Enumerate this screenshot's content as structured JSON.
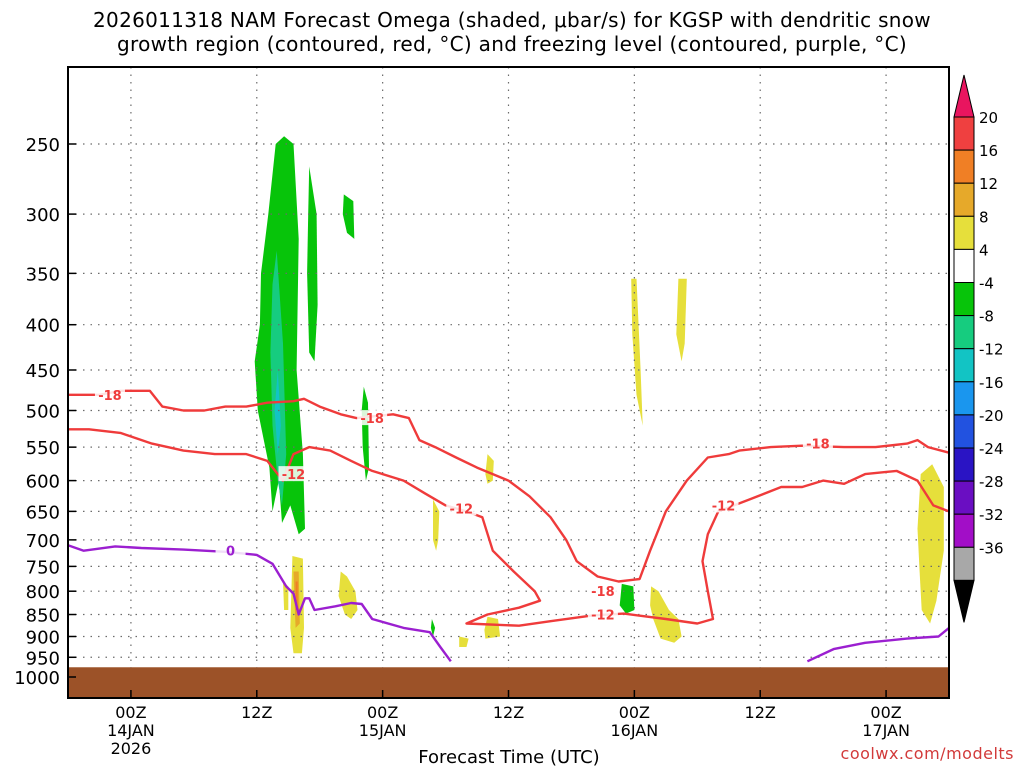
{
  "title_lines": [
    "2026011318 NAM Forecast Omega (shaded, μbar/s) for KGSP with dendritic snow",
    "growth region (contoured, red, °C) and freezing level (contoured, purple, °C)"
  ],
  "credit": "coolwx.com/modelts",
  "colors": {
    "freezing": "#9b1fd0",
    "dendritic": "#ef3b3b",
    "ground": "#9c5228",
    "grid": "#6b6b6b"
  },
  "chart_data": {
    "type": "heatmap",
    "xlabel": "Forecast Time (UTC)",
    "ylabel": "",
    "x_unit": "hours since 2026-01-13 18Z",
    "xlim": [
      0,
      84
    ],
    "y_unit": "hPa",
    "ylim": [
      1000,
      200
    ],
    "y_scale": "log",
    "grid": true,
    "ground_top_hpa": 975,
    "y_ticks": [
      250,
      300,
      350,
      400,
      450,
      500,
      550,
      600,
      650,
      700,
      750,
      800,
      850,
      900,
      950,
      1000
    ],
    "x_ticks": [
      {
        "x": 6,
        "lines": [
          "00Z",
          "14JAN",
          "2026"
        ]
      },
      {
        "x": 18,
        "lines": [
          "12Z"
        ]
      },
      {
        "x": 30,
        "lines": [
          "00Z",
          "15JAN"
        ]
      },
      {
        "x": 42,
        "lines": [
          "12Z"
        ]
      },
      {
        "x": 54,
        "lines": [
          "00Z",
          "16JAN"
        ]
      },
      {
        "x": 66,
        "lines": [
          "12Z"
        ]
      },
      {
        "x": 78,
        "lines": [
          "00Z",
          "17JAN"
        ]
      }
    ],
    "colorbar": {
      "labels": [
        "20",
        "16",
        "12",
        "8",
        "4",
        "-4",
        "-8",
        "-12",
        "-16",
        "-20",
        "-24",
        "-28",
        "-32",
        "-36"
      ],
      "colors": [
        "#e9155f",
        "#ef4040",
        "#f07f25",
        "#e6a92a",
        "#e6df3b",
        "#ffffff",
        "#07c40a",
        "#16cc7f",
        "#12c4c4",
        "#1a96ee",
        "#2252e0",
        "#2a14c4",
        "#6a0ec2",
        "#a20ec7",
        "#a8a8a8",
        "#000000"
      ]
    },
    "omega_areas": [
      {
        "level": "-4",
        "points": [
          [
            20.6,
            245
          ],
          [
            21.5,
            250
          ],
          [
            22.0,
            320
          ],
          [
            21.8,
            450
          ],
          [
            22.4,
            560
          ],
          [
            22.6,
            680
          ],
          [
            22.0,
            690
          ],
          [
            21.2,
            640
          ],
          [
            20.4,
            670
          ],
          [
            20.1,
            600
          ],
          [
            19.5,
            650
          ],
          [
            19.2,
            580
          ],
          [
            18.1,
            500
          ],
          [
            17.8,
            440
          ],
          [
            18.3,
            400
          ],
          [
            18.4,
            350
          ],
          [
            19.1,
            300
          ],
          [
            19.8,
            250
          ]
        ]
      },
      {
        "level": "-8",
        "points": [
          [
            19.9,
            330
          ],
          [
            20.5,
            420
          ],
          [
            20.8,
            560
          ],
          [
            20.4,
            640
          ],
          [
            20.0,
            600
          ],
          [
            19.5,
            520
          ],
          [
            19.3,
            430
          ],
          [
            19.5,
            360
          ]
        ]
      },
      {
        "level": "-12",
        "points": [
          [
            20.0,
            450
          ],
          [
            20.3,
            520
          ],
          [
            20.0,
            560
          ],
          [
            19.7,
            500
          ]
        ]
      },
      {
        "level": "-4",
        "points": [
          [
            23.0,
            265
          ],
          [
            23.7,
            300
          ],
          [
            23.8,
            380
          ],
          [
            23.5,
            440
          ],
          [
            23.0,
            430
          ],
          [
            22.8,
            350
          ],
          [
            22.9,
            300
          ]
        ]
      },
      {
        "level": "-4",
        "points": [
          [
            26.3,
            285
          ],
          [
            27.2,
            290
          ],
          [
            27.3,
            320
          ],
          [
            26.6,
            315
          ],
          [
            26.2,
            300
          ]
        ]
      },
      {
        "level": "-4",
        "points": [
          [
            28.2,
            470
          ],
          [
            28.6,
            490
          ],
          [
            28.7,
            580
          ],
          [
            28.4,
            600
          ],
          [
            28.1,
            550
          ],
          [
            28.0,
            500
          ]
        ]
      },
      {
        "level": "-4",
        "points": [
          [
            52.8,
            785
          ],
          [
            53.9,
            790
          ],
          [
            54.0,
            840
          ],
          [
            53.2,
            848
          ],
          [
            52.6,
            830
          ]
        ]
      },
      {
        "level": "-4",
        "points": [
          [
            34.7,
            860
          ],
          [
            35.0,
            880
          ],
          [
            34.8,
            900
          ],
          [
            34.6,
            880
          ]
        ]
      },
      {
        "level": "4",
        "points": [
          [
            21.4,
            730
          ],
          [
            22.4,
            735
          ],
          [
            22.5,
            880
          ],
          [
            22.3,
            940
          ],
          [
            21.5,
            940
          ],
          [
            21.2,
            880
          ],
          [
            21.3,
            800
          ]
        ]
      },
      {
        "level": "8",
        "points": [
          [
            21.5,
            760
          ],
          [
            22.0,
            760
          ],
          [
            22.1,
            870
          ],
          [
            21.7,
            880
          ],
          [
            21.6,
            820
          ]
        ]
      },
      {
        "level": "12",
        "points": [
          [
            21.7,
            780
          ],
          [
            21.9,
            780
          ],
          [
            21.9,
            840
          ],
          [
            21.7,
            840
          ]
        ]
      },
      {
        "level": "4",
        "points": [
          [
            20.5,
            780
          ],
          [
            21.0,
            790
          ],
          [
            21.0,
            840
          ],
          [
            20.6,
            840
          ]
        ]
      },
      {
        "level": "4",
        "points": [
          [
            26.0,
            760
          ],
          [
            26.6,
            770
          ],
          [
            27.4,
            800
          ],
          [
            27.6,
            840
          ],
          [
            27.0,
            860
          ],
          [
            26.4,
            850
          ],
          [
            25.8,
            810
          ]
        ]
      },
      {
        "level": "4",
        "points": [
          [
            34.8,
            630
          ],
          [
            35.4,
            650
          ],
          [
            35.3,
            700
          ],
          [
            35.1,
            720
          ],
          [
            34.8,
            700
          ]
        ]
      },
      {
        "level": "4",
        "points": [
          [
            40.0,
            560
          ],
          [
            40.6,
            570
          ],
          [
            40.5,
            600
          ],
          [
            40.0,
            605
          ],
          [
            39.8,
            590
          ]
        ]
      },
      {
        "level": "4",
        "points": [
          [
            40.0,
            855
          ],
          [
            41.0,
            860
          ],
          [
            41.2,
            900
          ],
          [
            39.8,
            905
          ],
          [
            39.7,
            885
          ]
        ]
      },
      {
        "level": "4",
        "points": [
          [
            37.3,
            900
          ],
          [
            38.2,
            905
          ],
          [
            38.0,
            925
          ],
          [
            37.3,
            925
          ]
        ]
      },
      {
        "level": "4",
        "points": [
          [
            53.7,
            355
          ],
          [
            54.2,
            355
          ],
          [
            54.6,
            450
          ],
          [
            54.8,
            520
          ],
          [
            54.2,
            480
          ],
          [
            53.8,
            410
          ]
        ]
      },
      {
        "level": "4",
        "points": [
          [
            58.2,
            355
          ],
          [
            59.0,
            355
          ],
          [
            58.8,
            420
          ],
          [
            58.5,
            440
          ],
          [
            58.0,
            410
          ]
        ]
      },
      {
        "level": "4",
        "points": [
          [
            55.6,
            790
          ],
          [
            56.3,
            800
          ],
          [
            57.3,
            840
          ],
          [
            58.2,
            860
          ],
          [
            58.5,
            900
          ],
          [
            57.8,
            915
          ],
          [
            56.5,
            905
          ],
          [
            55.8,
            860
          ],
          [
            55.5,
            830
          ]
        ]
      },
      {
        "level": "4",
        "points": [
          [
            81.3,
            590
          ],
          [
            82.4,
            575
          ],
          [
            83.5,
            610
          ],
          [
            83.5,
            720
          ],
          [
            82.8,
            820
          ],
          [
            82.2,
            870
          ],
          [
            81.4,
            840
          ],
          [
            81.2,
            760
          ],
          [
            81.0,
            680
          ]
        ]
      }
    ],
    "contours": [
      {
        "kind": "dendritic",
        "label": "-18",
        "label_at": [
          4.0,
          480
        ],
        "points": [
          [
            0,
            480
          ],
          [
            3,
            480
          ],
          [
            5,
            475
          ],
          [
            7.8,
            475
          ],
          [
            9,
            495
          ],
          [
            11,
            500
          ],
          [
            13,
            500
          ],
          [
            15,
            495
          ],
          [
            17,
            495
          ],
          [
            19,
            490
          ],
          [
            21.5,
            488
          ],
          [
            22.5,
            485
          ],
          [
            24,
            495
          ],
          [
            26,
            505
          ],
          [
            27.5,
            510
          ],
          [
            31,
            505
          ],
          [
            32.5,
            510
          ],
          [
            33.5,
            540
          ],
          [
            35,
            550
          ],
          [
            37,
            565
          ],
          [
            39,
            580
          ],
          [
            42,
            600
          ],
          [
            44,
            625
          ],
          [
            46,
            660
          ],
          [
            47.5,
            700
          ],
          [
            48.5,
            740
          ],
          [
            50.5,
            770
          ],
          [
            52.5,
            780
          ],
          [
            54.5,
            775
          ],
          [
            55.5,
            720
          ],
          [
            57,
            650
          ],
          [
            59,
            600
          ],
          [
            61,
            565
          ],
          [
            63,
            560
          ],
          [
            64,
            555
          ],
          [
            67,
            550
          ],
          [
            70,
            548
          ],
          [
            74,
            550
          ],
          [
            77,
            550
          ],
          [
            80,
            545
          ],
          [
            81,
            540
          ],
          [
            82,
            550
          ],
          [
            84,
            558
          ]
        ]
      },
      {
        "kind": "dendritic",
        "label": "-18",
        "label_at": [
          29,
          510
        ],
        "points": []
      },
      {
        "kind": "dendritic",
        "label": "-12",
        "label_at": [
          21.5,
          590
        ],
        "points": [
          [
            0,
            525
          ],
          [
            2,
            525
          ],
          [
            5,
            530
          ],
          [
            8,
            545
          ],
          [
            11,
            555
          ],
          [
            14,
            560
          ],
          [
            17,
            560
          ],
          [
            19,
            570
          ],
          [
            20,
            590
          ],
          [
            20.5,
            600
          ],
          [
            21.5,
            560
          ],
          [
            23,
            550
          ],
          [
            25,
            555
          ],
          [
            27,
            570
          ],
          [
            29,
            585
          ],
          [
            32,
            600
          ],
          [
            34,
            620
          ],
          [
            36,
            640
          ],
          [
            38,
            650
          ],
          [
            39.5,
            660
          ],
          [
            40.5,
            720
          ],
          [
            42.5,
            760
          ],
          [
            44.5,
            800
          ],
          [
            45,
            820
          ],
          [
            43,
            835
          ],
          [
            40,
            850
          ],
          [
            38,
            870
          ],
          [
            43,
            875
          ],
          [
            46,
            865
          ],
          [
            50,
            852
          ],
          [
            53,
            848
          ],
          [
            57,
            860
          ],
          [
            60,
            870
          ],
          [
            61.5,
            860
          ],
          [
            61,
            800
          ],
          [
            60.5,
            740
          ],
          [
            61,
            690
          ],
          [
            62,
            650
          ],
          [
            65,
            630
          ],
          [
            68,
            610
          ],
          [
            70,
            610
          ],
          [
            72,
            600
          ],
          [
            74,
            605
          ],
          [
            76,
            590
          ],
          [
            79,
            585
          ],
          [
            81,
            600
          ],
          [
            82.5,
            640
          ],
          [
            84,
            650
          ]
        ]
      },
      {
        "kind": "dendritic",
        "label": "-12",
        "label_at": [
          37.5,
          645
        ],
        "points": []
      },
      {
        "kind": "dendritic",
        "label": "-12",
        "label_at": [
          62.5,
          640
        ],
        "points": []
      },
      {
        "kind": "dendritic",
        "label": "-18",
        "label_at": [
          51,
          800
        ],
        "points": []
      },
      {
        "kind": "dendritic",
        "label": "-12",
        "label_at": [
          51,
          850
        ],
        "points": []
      },
      {
        "kind": "dendritic",
        "label": "-18",
        "label_at": [
          71.5,
          545
        ],
        "points": []
      },
      {
        "kind": "freezing",
        "label": "0",
        "label_at": [
          15.5,
          720
        ],
        "points": [
          [
            0,
            710
          ],
          [
            1.5,
            720
          ],
          [
            4.5,
            712
          ],
          [
            7,
            715
          ],
          [
            11,
            718
          ],
          [
            15,
            722
          ],
          [
            18,
            728
          ],
          [
            19.5,
            745
          ],
          [
            20.8,
            790
          ],
          [
            21.5,
            805
          ],
          [
            22,
            850
          ],
          [
            22.6,
            815
          ],
          [
            23,
            815
          ],
          [
            23.5,
            840
          ],
          [
            25.5,
            832
          ],
          [
            27,
            825
          ],
          [
            28,
            827
          ],
          [
            29,
            860
          ],
          [
            32,
            880
          ],
          [
            34.5,
            890
          ],
          [
            35.5,
            925
          ],
          [
            36.5,
            960
          ]
        ]
      },
      {
        "kind": "freezing",
        "label": "",
        "label_at": [
          0,
          0
        ],
        "points": [
          [
            70.5,
            960
          ],
          [
            73,
            930
          ],
          [
            76,
            915
          ],
          [
            80,
            905
          ],
          [
            83,
            900
          ],
          [
            84,
            880
          ]
        ]
      }
    ]
  }
}
